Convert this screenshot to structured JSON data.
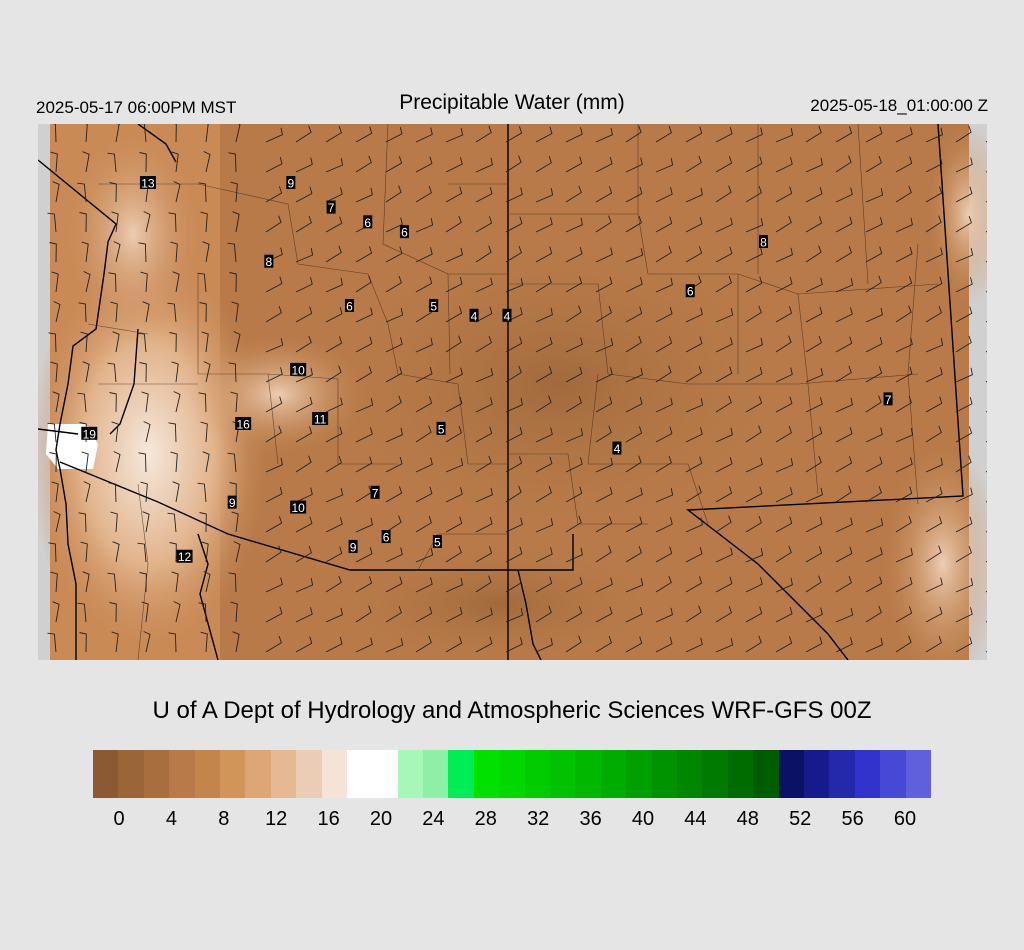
{
  "header": {
    "valid_local": "2025-05-17 06:00PM MST",
    "title": "Precipitable Water (mm)",
    "valid_utc": "2025-05-18_01:00:00 Z"
  },
  "footer": {
    "credit": "U of A Dept of Hydrology and Atmospheric Sciences WRF-GFS 00Z"
  },
  "map": {
    "field_color": "#b77a48",
    "wind_barb_color": "#222222",
    "border_color": "#000000",
    "station_values": [
      {
        "label": "13",
        "lon": -119.2,
        "lat": 46.1
      },
      {
        "label": "9",
        "lon": -115.3,
        "lat": 46.1
      },
      {
        "label": "7",
        "lon": -114.2,
        "lat": 45.6
      },
      {
        "label": "6",
        "lon": -113.2,
        "lat": 45.3
      },
      {
        "label": "6",
        "lon": -112.2,
        "lat": 45.1
      },
      {
        "label": "8",
        "lon": -115.9,
        "lat": 44.5
      },
      {
        "label": "6",
        "lon": -113.7,
        "lat": 43.6
      },
      {
        "label": "5",
        "lon": -111.4,
        "lat": 43.6
      },
      {
        "label": "4",
        "lon": -110.3,
        "lat": 43.4
      },
      {
        "label": "4",
        "lon": -109.4,
        "lat": 43.4
      },
      {
        "label": "8",
        "lon": -102.4,
        "lat": 44.9
      },
      {
        "label": "6",
        "lon": -104.4,
        "lat": 43.9
      },
      {
        "label": "10",
        "lon": -115.1,
        "lat": 42.3
      },
      {
        "label": "16",
        "lon": -116.6,
        "lat": 41.2
      },
      {
        "label": "11",
        "lon": -114.5,
        "lat": 41.3
      },
      {
        "label": "5",
        "lon": -111.2,
        "lat": 41.1
      },
      {
        "label": "4",
        "lon": -106.4,
        "lat": 40.7
      },
      {
        "label": "7",
        "lon": -99.0,
        "lat": 41.7
      },
      {
        "label": "19",
        "lon": -120.8,
        "lat": 41.0
      },
      {
        "label": "7",
        "lon": -113.0,
        "lat": 39.8
      },
      {
        "label": "9",
        "lon": -116.9,
        "lat": 39.6
      },
      {
        "label": "10",
        "lon": -115.1,
        "lat": 39.5
      },
      {
        "label": "6",
        "lon": -112.7,
        "lat": 38.9
      },
      {
        "label": "9",
        "lon": -113.6,
        "lat": 38.7
      },
      {
        "label": "5",
        "lon": -111.3,
        "lat": 38.8
      },
      {
        "label": "12",
        "lon": -118.2,
        "lat": 38.5
      }
    ]
  },
  "colorbar": {
    "colors": [
      "#8b5a34",
      "#9a6538",
      "#a96e3e",
      "#b77a48",
      "#c4854d",
      "#d19459",
      "#dea677",
      "#e5b994",
      "#ebcdb5",
      "#f3e4d7",
      "#ffffff",
      "#ffffff",
      "#a6f7b8",
      "#8ef0a6",
      "#00ee55",
      "#00e100",
      "#00d800",
      "#00cc00",
      "#00c200",
      "#00b800",
      "#00ac00",
      "#00a000",
      "#009300",
      "#008700",
      "#007a00",
      "#006c00",
      "#005c00",
      "#0b1266",
      "#161a8c",
      "#2428aa",
      "#3232cc",
      "#4848d6",
      "#6060dc"
    ],
    "tick_values": [
      "0",
      "4",
      "8",
      "12",
      "16",
      "20",
      "24",
      "28",
      "32",
      "36",
      "40",
      "44",
      "48",
      "52",
      "56",
      "60"
    ]
  }
}
